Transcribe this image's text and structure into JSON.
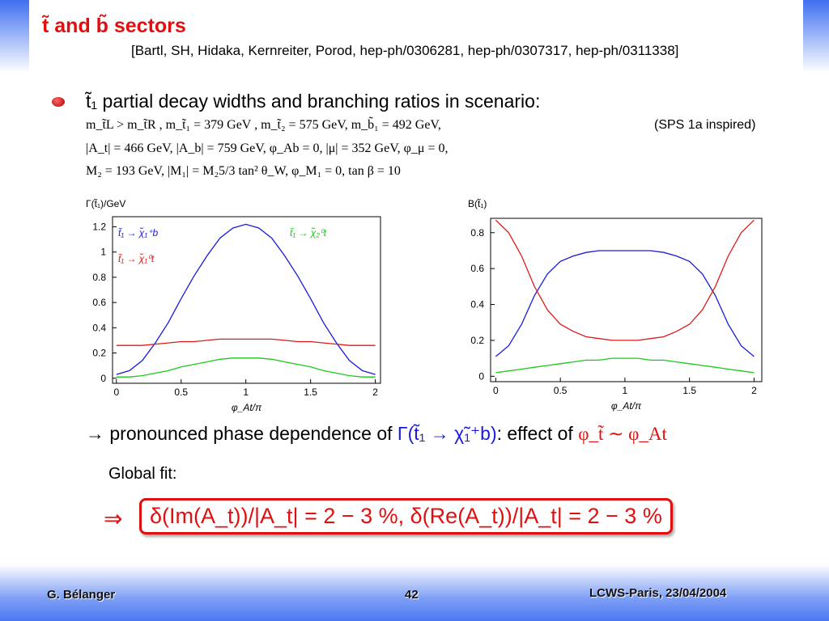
{
  "header": {
    "title": "t̃ and b̃ sectors",
    "reference": "[Bartl, SH, Hidaka, Kernreiter, Porod, hep-ph/0306281, hep-ph/0307317, hep-ph/0311338]"
  },
  "bullet": "t̃₁ partial decay widths and branching ratios in scenario:",
  "parameters": [
    "m_t̃L > m_t̃R , m_t̃₁ = 379 GeV , m_t̃₂ = 575 GeV, m_b̃₁ = 492 GeV,",
    "|A_t| = 466 GeV, |A_b| = 759 GeV, φ_Ab = 0, |μ| = 352 GeV, φ_μ = 0,",
    "M₂ = 193 GeV, |M₁| = M₂5/3 tan² θ_W, φ_M₁ = 0, tan β = 10"
  ],
  "scenario_note": "(SPS 1a inspired)",
  "chart_data": [
    {
      "type": "line",
      "title": "Γ(t̃₁)/GeV",
      "x_label": "φ_At/π",
      "x": [
        0,
        0.1,
        0.2,
        0.3,
        0.4,
        0.5,
        0.6,
        0.7,
        0.8,
        0.9,
        1,
        1.1,
        1.2,
        1.3,
        1.4,
        1.5,
        1.6,
        1.7,
        1.8,
        1.9,
        2
      ],
      "series": [
        {
          "name": "t̃₁ → χ̃₁⁺b",
          "color": "#1a1adc",
          "values": [
            0.03,
            0.06,
            0.14,
            0.28,
            0.44,
            0.63,
            0.81,
            0.97,
            1.11,
            1.19,
            1.22,
            1.19,
            1.11,
            0.97,
            0.81,
            0.63,
            0.44,
            0.28,
            0.14,
            0.06,
            0.03
          ]
        },
        {
          "name": "t̃₁ → χ̃₁⁰t",
          "color": "#dc1a1a",
          "values": [
            0.26,
            0.26,
            0.26,
            0.27,
            0.28,
            0.29,
            0.29,
            0.3,
            0.31,
            0.31,
            0.31,
            0.31,
            0.31,
            0.3,
            0.29,
            0.29,
            0.28,
            0.27,
            0.26,
            0.26,
            0.26
          ]
        },
        {
          "name": "t̃₁ → χ̃₂⁰t",
          "color": "#1ac81a",
          "values": [
            0.01,
            0.01,
            0.02,
            0.04,
            0.06,
            0.09,
            0.11,
            0.13,
            0.15,
            0.16,
            0.16,
            0.16,
            0.15,
            0.13,
            0.11,
            0.09,
            0.06,
            0.04,
            0.02,
            0.01,
            0.01
          ]
        }
      ],
      "xlim": [
        -0.03,
        2.04
      ],
      "ylim": [
        -0.04,
        1.28
      ],
      "xticks": [
        0,
        0.5,
        1,
        1.5,
        2
      ],
      "yticks": [
        0,
        0.2,
        0.4,
        0.6,
        0.8,
        1,
        1.2
      ]
    },
    {
      "type": "line",
      "title": "B(t̃₁)",
      "x_label": "φ_At/π",
      "x": [
        0,
        0.1,
        0.2,
        0.3,
        0.4,
        0.5,
        0.6,
        0.7,
        0.8,
        0.9,
        1,
        1.1,
        1.2,
        1.3,
        1.4,
        1.5,
        1.6,
        1.7,
        1.8,
        1.9,
        2
      ],
      "series": [
        {
          "color": "#1a1adc",
          "values": [
            0.11,
            0.17,
            0.29,
            0.45,
            0.57,
            0.64,
            0.67,
            0.69,
            0.7,
            0.7,
            0.7,
            0.7,
            0.7,
            0.69,
            0.67,
            0.64,
            0.57,
            0.45,
            0.29,
            0.17,
            0.11
          ]
        },
        {
          "color": "#dc1a1a",
          "values": [
            0.87,
            0.8,
            0.67,
            0.5,
            0.37,
            0.29,
            0.25,
            0.22,
            0.21,
            0.2,
            0.2,
            0.2,
            0.21,
            0.22,
            0.25,
            0.29,
            0.37,
            0.5,
            0.67,
            0.8,
            0.87
          ]
        },
        {
          "color": "#1ac81a",
          "values": [
            0.02,
            0.03,
            0.04,
            0.05,
            0.06,
            0.07,
            0.08,
            0.09,
            0.09,
            0.1,
            0.1,
            0.1,
            0.09,
            0.09,
            0.08,
            0.07,
            0.06,
            0.05,
            0.04,
            0.03,
            0.02
          ]
        }
      ],
      "xlim": [
        -0.04,
        2.06
      ],
      "ylim": [
        -0.03,
        0.88
      ],
      "xticks": [
        0,
        0.5,
        1,
        1.5,
        2
      ],
      "yticks": [
        0,
        0.2,
        0.4,
        0.6,
        0.8
      ]
    }
  ],
  "conclusion": [
    "→ pronounced phase dependence of ",
    "Γ(t̃₁ → χ̃₁⁺b)",
    ": effect of ",
    "φ_t̃ ∼ φ_At"
  ],
  "global_fit": {
    "label": "Global fit:",
    "arrow": "⇒",
    "result": "δ(Im(A_t))/|A_t| = 2 − 3 %, δ(Re(A_t))/|A_t| = 2 − 3 %"
  },
  "footer": {
    "author": "G. Bélanger",
    "page": "42",
    "event": "LCWS-Paris, 23/04/2004"
  }
}
